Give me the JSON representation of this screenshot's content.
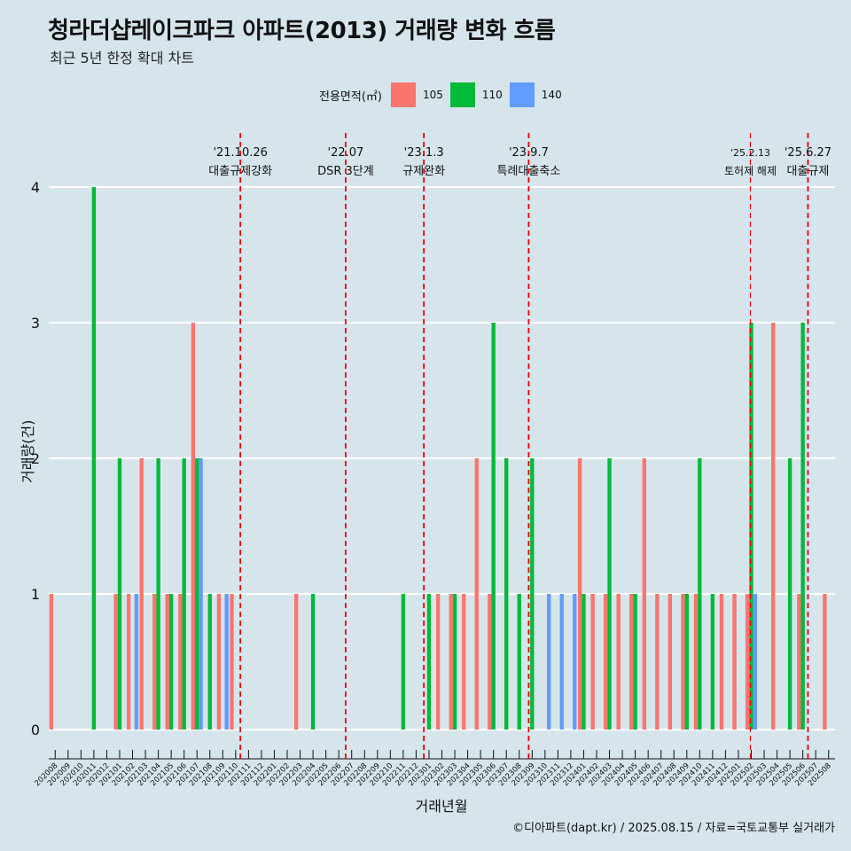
{
  "title": "청라더샵레이크파크 아파트(2013) 거래량 변화 흐름",
  "subtitle": "최근 5년 한정 확대 차트",
  "legend": {
    "title": "전용면적(㎡)",
    "items": [
      {
        "label": "105",
        "color": "#F8766D"
      },
      {
        "label": "110",
        "color": "#00BA38"
      },
      {
        "label": "140",
        "color": "#619CFF"
      }
    ]
  },
  "caption": "©디아파트(dapt.kr) / 2025.08.15 / 자료=국토교통부 실거래가",
  "chart_data": {
    "type": "bar",
    "xlabel": "거래년월",
    "ylabel": "거래량(건)",
    "ylim": [
      0,
      4
    ],
    "yticks": [
      0,
      1,
      2,
      3,
      4
    ],
    "grid": true,
    "legend_position": "top",
    "categories": [
      "202008",
      "202009",
      "202010",
      "202011",
      "202012",
      "202101",
      "202102",
      "202103",
      "202104",
      "202105",
      "202106",
      "202107",
      "202108",
      "202109",
      "202110",
      "202111",
      "202112",
      "202201",
      "202202",
      "202203",
      "202204",
      "202205",
      "202206",
      "202207",
      "202208",
      "202209",
      "202210",
      "202211",
      "202212",
      "202301",
      "202302",
      "202303",
      "202304",
      "202305",
      "202306",
      "202307",
      "202308",
      "202309",
      "202310",
      "202311",
      "202312",
      "202401",
      "202402",
      "202403",
      "202404",
      "202405",
      "202406",
      "202407",
      "202408",
      "202409",
      "202410",
      "202411",
      "202412",
      "202501",
      "202502",
      "202503",
      "202504",
      "202505",
      "202506",
      "202507",
      "202508"
    ],
    "series": [
      {
        "name": "105",
        "color": "#F8766D",
        "values": [
          1,
          0,
          0,
          0,
          0,
          1,
          1,
          2,
          1,
          1,
          1,
          3,
          0,
          1,
          1,
          0,
          0,
          0,
          0,
          1,
          0,
          0,
          0,
          0,
          0,
          0,
          0,
          0,
          0,
          0,
          1,
          1,
          1,
          2,
          1,
          0,
          0,
          0,
          0,
          0,
          0,
          2,
          1,
          1,
          1,
          1,
          2,
          1,
          1,
          1,
          1,
          0,
          1,
          1,
          1,
          0,
          3,
          0,
          1,
          0,
          1
        ]
      },
      {
        "name": "110",
        "color": "#00BA38",
        "values": [
          0,
          0,
          0,
          4,
          0,
          2,
          0,
          0,
          2,
          1,
          2,
          2,
          1,
          0,
          0,
          0,
          0,
          0,
          0,
          0,
          1,
          0,
          0,
          0,
          0,
          0,
          0,
          1,
          0,
          1,
          0,
          1,
          0,
          0,
          3,
          2,
          1,
          2,
          0,
          0,
          0,
          1,
          0,
          2,
          0,
          1,
          0,
          0,
          0,
          1,
          2,
          1,
          0,
          0,
          3,
          0,
          0,
          2,
          3,
          0,
          0
        ]
      },
      {
        "name": "140",
        "color": "#619CFF",
        "values": [
          0,
          0,
          0,
          0,
          0,
          0,
          1,
          0,
          0,
          0,
          0,
          2,
          0,
          1,
          0,
          0,
          0,
          0,
          0,
          0,
          0,
          0,
          0,
          0,
          0,
          0,
          0,
          0,
          0,
          0,
          0,
          0,
          0,
          0,
          0,
          0,
          0,
          0,
          1,
          1,
          1,
          0,
          0,
          0,
          0,
          0,
          0,
          0,
          0,
          0,
          0,
          0,
          0,
          0,
          1,
          0,
          0,
          0,
          0,
          0,
          0
        ]
      }
    ],
    "annotations": [
      {
        "date": "'21.10.26",
        "label": "대출규제강화",
        "month": "202110",
        "day": 26
      },
      {
        "date": "'22.07",
        "label": "DSR 3단계",
        "month": "202207",
        "day": 1
      },
      {
        "date": "'23.1.3",
        "label": "규제완화",
        "month": "202301",
        "day": 3
      },
      {
        "date": "'23.9.7",
        "label": "특례대출축소",
        "month": "202309",
        "day": 7
      },
      {
        "date": "'25.2.13",
        "label": "토허제 해제",
        "month": "202502",
        "day": 13
      },
      {
        "date": "'25.6.27",
        "label": "대출규제",
        "month": "202506",
        "day": 27
      }
    ]
  }
}
